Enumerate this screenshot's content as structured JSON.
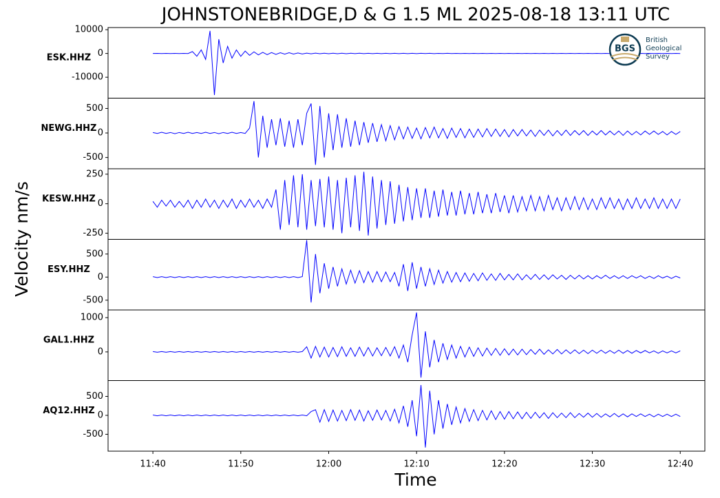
{
  "chart_data": {
    "type": "line",
    "title": "JOHNSTONEBRIDGE,D & G 1.5 ML   2025-08-18 13:11 UTC",
    "x_label": "Time",
    "y_label": "Velocity nm/s",
    "xlim": [
      694.9,
      762.8
    ],
    "xticks": [
      {
        "value": 700,
        "label": "11:40"
      },
      {
        "value": 710,
        "label": "11:50"
      },
      {
        "value": 720,
        "label": "12:00"
      },
      {
        "value": 730,
        "label": "12:10"
      },
      {
        "value": 740,
        "label": "12:20"
      },
      {
        "value": 750,
        "label": "12:30"
      },
      {
        "value": 760,
        "label": "12:40"
      }
    ],
    "x": [
      700,
      700.5,
      701,
      701.5,
      702,
      702.5,
      703,
      703.5,
      704,
      704.5,
      705,
      705.5,
      706,
      706.5,
      707,
      707.5,
      708,
      708.5,
      709,
      709.5,
      710,
      710.5,
      711,
      711.5,
      712,
      712.5,
      713,
      713.5,
      714,
      714.5,
      715,
      715.5,
      716,
      716.5,
      717,
      717.5,
      718,
      718.5,
      719,
      719.5,
      720,
      720.5,
      721,
      721.5,
      722,
      722.5,
      723,
      723.5,
      724,
      724.5,
      725,
      725.5,
      726,
      726.5,
      727,
      727.5,
      728,
      728.5,
      729,
      729.5,
      730,
      730.5,
      731,
      731.5,
      732,
      732.5,
      733,
      733.5,
      734,
      734.5,
      735,
      735.5,
      736,
      736.5,
      737,
      737.5,
      738,
      738.5,
      739,
      739.5,
      740,
      740.5,
      741,
      741.5,
      742,
      742.5,
      743,
      743.5,
      744,
      744.5,
      745,
      745.5,
      746,
      746.5,
      747,
      747.5,
      748,
      748.5,
      749,
      749.5,
      750,
      750.5,
      751,
      751.5,
      752,
      752.5,
      753,
      753.5,
      754,
      754.5,
      755,
      755.5,
      756,
      756.5,
      757,
      757.5,
      758,
      758.5,
      759,
      759.5,
      760
    ],
    "series": [
      {
        "name": "ESK.HHZ",
        "color": "#0000ff",
        "ylim": [
          -18800,
          10900
        ],
        "yticks": [
          10000,
          0,
          -10000
        ],
        "values": [
          0,
          20,
          -20,
          30,
          -20,
          20,
          -30,
          20,
          -20,
          800,
          -1200,
          1500,
          -2500,
          9500,
          -17500,
          6000,
          -4000,
          3000,
          -2000,
          1500,
          -1200,
          1000,
          -800,
          700,
          -600,
          500,
          -500,
          400,
          -400,
          300,
          -300,
          300,
          -250,
          200,
          -200,
          150,
          -150,
          150,
          -120,
          120,
          -100,
          100,
          -120,
          100,
          -100,
          90,
          -90,
          100,
          -80,
          80,
          -90,
          80,
          -80,
          70,
          -70,
          80,
          -70,
          60,
          -60,
          70,
          -60,
          60,
          -50,
          60,
          -60,
          50,
          -50,
          60,
          -50,
          50,
          -40,
          50,
          -50,
          40,
          -40,
          50,
          -40,
          40,
          -40,
          40,
          -30,
          40,
          -40,
          30,
          -30,
          40,
          -30,
          30,
          -30,
          40,
          -30,
          30,
          -30,
          30,
          -20,
          30,
          -30,
          30,
          -20,
          20,
          -30,
          30,
          -20,
          20,
          -20,
          30,
          -20,
          20,
          -20,
          20,
          -20,
          20,
          -30,
          20,
          -20,
          20,
          -20,
          20,
          -20,
          20,
          -20
        ]
      },
      {
        "name": "NEWG.HHZ",
        "color": "#0000ff",
        "ylim": [
          -730,
          710
        ],
        "yticks": [
          500,
          0,
          -500
        ],
        "values": [
          10,
          -10,
          15,
          -10,
          10,
          -15,
          10,
          -10,
          15,
          -10,
          10,
          -10,
          15,
          -10,
          10,
          -15,
          10,
          -10,
          15,
          -10,
          10,
          -10,
          100,
          650,
          -500,
          350,
          -300,
          280,
          -250,
          300,
          -280,
          250,
          -300,
          280,
          -250,
          400,
          600,
          -650,
          550,
          -500,
          400,
          -350,
          380,
          -300,
          300,
          -280,
          250,
          -250,
          220,
          -200,
          200,
          -180,
          170,
          -160,
          150,
          -140,
          130,
          -120,
          120,
          -110,
          100,
          -120,
          110,
          -100,
          120,
          -100,
          90,
          -110,
          100,
          -90,
          90,
          -100,
          80,
          -90,
          80,
          -80,
          90,
          -70,
          80,
          -70,
          70,
          -80,
          70,
          -60,
          70,
          -60,
          60,
          -70,
          60,
          -50,
          60,
          -60,
          50,
          -50,
          60,
          -50,
          50,
          -40,
          50,
          -50,
          40,
          -40,
          50,
          -40,
          40,
          -40,
          40,
          -50,
          40,
          -40,
          30,
          -40,
          40,
          -30,
          40,
          -30,
          30,
          -40,
          30,
          -30,
          30
        ]
      },
      {
        "name": "KESW.HHZ",
        "color": "#0000ff",
        "ylim": [
          -302,
          296
        ],
        "yticks": [
          250,
          0,
          -250
        ],
        "values": [
          20,
          -30,
          30,
          -20,
          30,
          -30,
          20,
          -30,
          30,
          -40,
          30,
          -30,
          40,
          -30,
          30,
          -40,
          30,
          -30,
          40,
          -40,
          30,
          -30,
          40,
          -30,
          30,
          -40,
          40,
          -30,
          120,
          -220,
          200,
          -180,
          240,
          -200,
          250,
          -220,
          200,
          -190,
          210,
          -200,
          230,
          -220,
          200,
          -250,
          220,
          -200,
          240,
          -230,
          270,
          -270,
          230,
          -210,
          200,
          -180,
          190,
          -170,
          160,
          -150,
          140,
          -140,
          130,
          -120,
          130,
          -120,
          110,
          -110,
          120,
          -100,
          100,
          -100,
          110,
          -90,
          90,
          -90,
          100,
          -80,
          80,
          -80,
          90,
          -70,
          70,
          -80,
          70,
          -70,
          60,
          -60,
          70,
          -60,
          60,
          -60,
          70,
          -50,
          50,
          -60,
          50,
          -50,
          60,
          -50,
          50,
          -50,
          40,
          -50,
          50,
          -40,
          50,
          -40,
          40,
          -50,
          40,
          -40,
          50,
          -40,
          40,
          -40,
          50,
          -40,
          40,
          -40,
          40,
          -40,
          40
        ]
      },
      {
        "name": "ESY.HHZ",
        "color": "#0000ff",
        "ylim": [
          -712,
          818
        ],
        "yticks": [
          500,
          0,
          -500
        ],
        "values": [
          10,
          -10,
          10,
          -10,
          10,
          -10,
          10,
          -10,
          10,
          -10,
          10,
          -10,
          10,
          -10,
          10,
          -10,
          10,
          -10,
          10,
          -10,
          10,
          -10,
          10,
          -10,
          10,
          -10,
          10,
          -10,
          10,
          -10,
          10,
          -10,
          10,
          -10,
          10,
          800,
          -550,
          500,
          -350,
          300,
          -250,
          220,
          -200,
          180,
          -150,
          150,
          -130,
          140,
          -120,
          120,
          -110,
          120,
          -100,
          110,
          -100,
          100,
          -200,
          280,
          -300,
          320,
          -250,
          220,
          -200,
          180,
          -160,
          150,
          -130,
          120,
          -110,
          100,
          -100,
          90,
          -90,
          80,
          -80,
          90,
          -70,
          70,
          -70,
          80,
          -60,
          60,
          -60,
          70,
          -60,
          50,
          -50,
          60,
          -50,
          50,
          -50,
          50,
          -40,
          40,
          -50,
          40,
          -40,
          40,
          -40,
          30,
          -40,
          30,
          -30,
          40,
          -30,
          30,
          -30,
          30,
          -30,
          30,
          -20,
          30,
          -30,
          20,
          -30,
          30,
          -20,
          20,
          -30,
          20,
          -20
        ]
      },
      {
        "name": "GAL1.HHZ",
        "color": "#0000ff",
        "ylim": [
          -837,
          1224
        ],
        "yticks": [
          1000,
          0
        ],
        "values": [
          10,
          -10,
          10,
          -10,
          10,
          -10,
          10,
          -10,
          10,
          -10,
          10,
          -10,
          10,
          -10,
          10,
          -10,
          10,
          -10,
          10,
          -10,
          10,
          -10,
          10,
          -10,
          10,
          -10,
          10,
          -10,
          10,
          -10,
          10,
          -10,
          10,
          -10,
          10,
          150,
          -180,
          160,
          -150,
          140,
          -150,
          130,
          -140,
          150,
          -130,
          120,
          -130,
          140,
          -120,
          130,
          -120,
          120,
          -110,
          130,
          -120,
          150,
          -180,
          200,
          -300,
          500,
          1150,
          -750,
          600,
          -450,
          350,
          -300,
          250,
          -220,
          200,
          -180,
          160,
          -150,
          140,
          -130,
          120,
          -120,
          110,
          -100,
          100,
          -100,
          90,
          -90,
          80,
          -90,
          80,
          -80,
          70,
          -70,
          80,
          -70,
          60,
          -60,
          70,
          -60,
          60,
          -50,
          60,
          -50,
          50,
          -50,
          50,
          -40,
          50,
          -40,
          40,
          -40,
          50,
          -40,
          40,
          -40,
          40,
          -30,
          40,
          -30,
          30,
          -40,
          30,
          -30,
          30,
          -30,
          30
        ]
      },
      {
        "name": "AQ12.HHZ",
        "color": "#0000ff",
        "ylim": [
          -945,
          918
        ],
        "yticks": [
          500,
          0,
          -500
        ],
        "values": [
          10,
          -10,
          10,
          -10,
          10,
          -10,
          10,
          -10,
          10,
          -10,
          10,
          -10,
          10,
          -10,
          10,
          -10,
          10,
          -10,
          10,
          -10,
          10,
          -10,
          10,
          -10,
          10,
          -10,
          10,
          -10,
          10,
          -10,
          10,
          -10,
          10,
          -10,
          10,
          -10,
          100,
          150,
          -180,
          150,
          -160,
          140,
          -150,
          130,
          -140,
          150,
          -130,
          140,
          -150,
          120,
          -130,
          140,
          -120,
          130,
          -150,
          160,
          -200,
          250,
          -300,
          400,
          -550,
          800,
          -850,
          650,
          -500,
          400,
          -350,
          300,
          -250,
          220,
          -200,
          180,
          -160,
          150,
          -140,
          130,
          -120,
          120,
          -110,
          100,
          -100,
          100,
          -90,
          90,
          -90,
          80,
          -80,
          80,
          -70,
          70,
          -80,
          70,
          -60,
          60,
          -60,
          70,
          -60,
          50,
          -50,
          60,
          -50,
          50,
          -50,
          40,
          -40,
          50,
          -40,
          40,
          -40,
          40,
          -30,
          40,
          -30,
          30,
          -40,
          30,
          -30,
          30,
          -30,
          30,
          -30
        ]
      }
    ]
  },
  "logo": {
    "abbr": "BGS",
    "lines": [
      "British",
      "Geological",
      "Survey"
    ]
  }
}
